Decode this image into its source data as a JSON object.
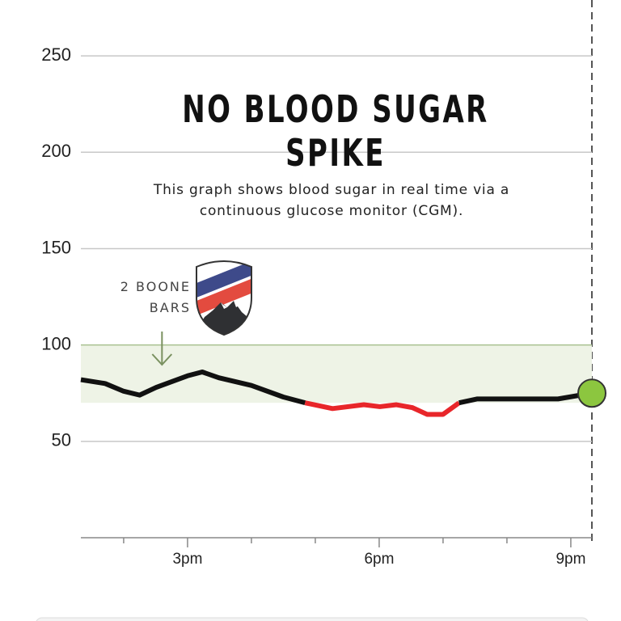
{
  "chart_data": {
    "type": "line",
    "title": "NO BLOOD SUGAR SPIKE",
    "subtitle": "This graph shows blood sugar in real time via a continuous glucose monitor (CGM).",
    "annotation": "2 BOONE BARS",
    "annotation_x": 14.6,
    "x": [
      13.33,
      13.71,
      14.0,
      14.25,
      14.51,
      15.0,
      15.23,
      15.49,
      16.0,
      16.5,
      16.84,
      17.27,
      17.76,
      18.01,
      18.27,
      18.52,
      18.75,
      19.0,
      19.25,
      19.53,
      20.8,
      21.33
    ],
    "series": [
      {
        "color": "#111111",
        "low_color": "#e8262a",
        "values": [
          82,
          80,
          76,
          74,
          78,
          84,
          86,
          83,
          79,
          73,
          70,
          67,
          69,
          68,
          69,
          67.5,
          64,
          64,
          70,
          72,
          72,
          75
        ]
      }
    ],
    "target_range": [
      70,
      100
    ],
    "target_color": "#eef3e6",
    "current_color": "#8cc63f",
    "xlim": [
      13.33,
      21.33
    ],
    "xticks": [
      {
        "value": 15,
        "label": "3pm"
      },
      {
        "value": 18,
        "label": "6pm"
      },
      {
        "value": 21,
        "label": "9pm"
      }
    ],
    "xminor_ticks": [
      14,
      16,
      17,
      19,
      20
    ],
    "ylim": [
      0,
      279
    ],
    "yticks": [
      50,
      100,
      150,
      200,
      250
    ],
    "grid": true
  }
}
